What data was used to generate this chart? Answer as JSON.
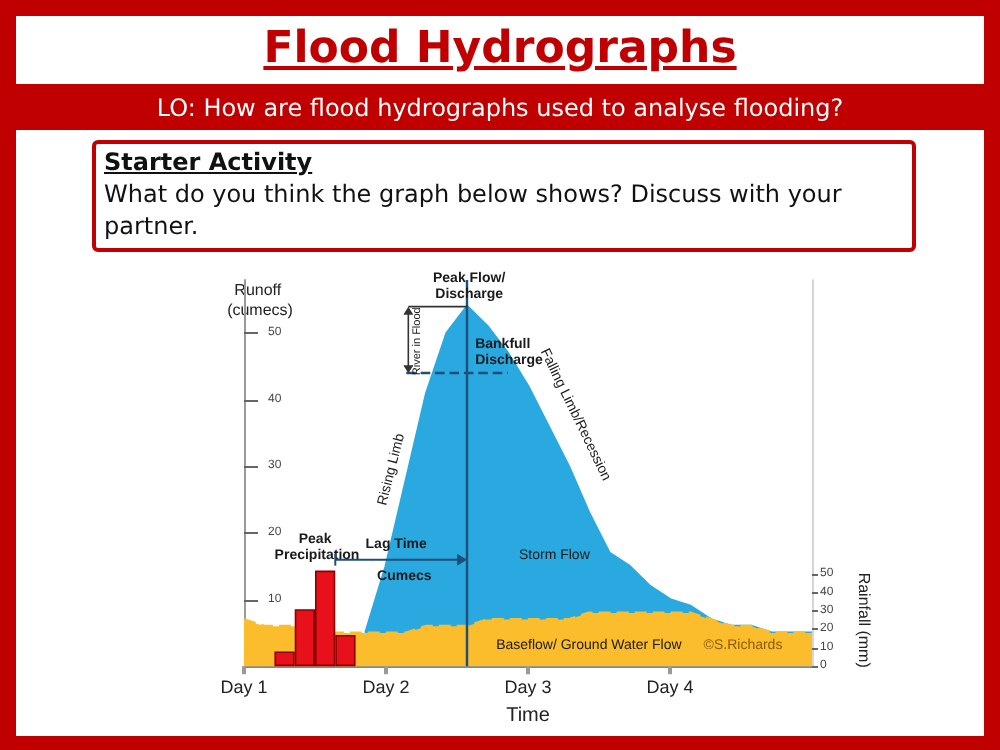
{
  "chart_data": {
    "type": "area",
    "title": "Flood Hydrographs",
    "subtitle": "LO: How are flood hydrographs used to analyse flooding?",
    "xlabel": "Time",
    "ylabel": "Runoff (cumecs)",
    "y2label": "Rainfall (mm)",
    "categories": [
      "Day 1",
      null,
      null,
      null,
      null,
      null,
      null,
      "Day 2",
      null,
      null,
      null,
      null,
      null,
      null,
      "Day 3",
      null,
      null,
      null,
      null,
      null,
      null,
      "Day 4",
      null,
      null,
      null,
      null,
      null,
      null,
      null
    ],
    "ylim": [
      0,
      58
    ],
    "yticks": [
      10,
      20,
      30,
      40,
      50
    ],
    "y2lim": [
      0,
      210
    ],
    "y2ticks": [
      0,
      10,
      20,
      30,
      40,
      50
    ],
    "series": [
      {
        "color": "#2aa9e0",
        "values": [
          null,
          null,
          null,
          null,
          null,
          null,
          5,
          15,
          28,
          41,
          50,
          54,
          51,
          47,
          42,
          36,
          30,
          23,
          17,
          15,
          12,
          10,
          9,
          7,
          6,
          6,
          5,
          5,
          5
        ]
      },
      {
        "color": "#fbbd2c",
        "line_style": "dashed",
        "values": [
          7,
          6,
          6,
          6,
          5,
          5,
          5,
          5,
          5,
          6,
          6,
          6,
          7,
          7,
          7,
          7,
          7,
          8,
          8,
          8,
          8,
          8,
          8,
          7,
          6,
          6,
          5,
          5,
          5
        ]
      },
      {
        "type": "bar",
        "color": "#e8101a",
        "axis": "y2",
        "values": [
          null,
          null,
          8,
          31,
          52,
          17,
          null,
          null,
          null,
          null,
          null,
          null,
          null,
          null,
          null,
          null,
          null,
          null,
          null,
          null,
          null,
          null,
          null,
          null,
          null,
          null,
          null,
          null,
          null
        ]
      }
    ],
    "ref_lines": [
      {
        "axis": "y",
        "value": 44,
        "label": "Bankfull Discharge",
        "color": "#1f4e79",
        "line_style": "dashed"
      }
    ],
    "annotations": [
      "Starter Activity",
      "What do you think the graph below shows? Discuss with your partner.",
      "Peak Precipitation",
      "Lag Time",
      "Cumecs",
      "Rising Limb",
      "Peak Flow/Discharge",
      "River in Flood",
      "Falling Limb/Recession",
      "Storm Flow",
      "Baseflow/ Ground Water Flow",
      "©S.Richards"
    ]
  }
}
